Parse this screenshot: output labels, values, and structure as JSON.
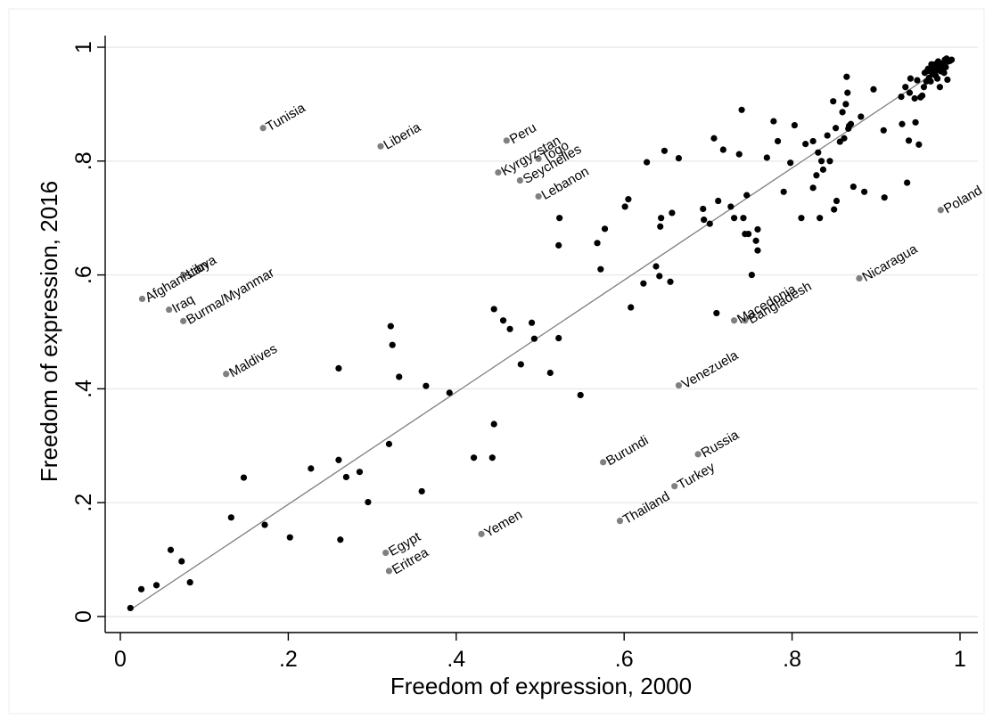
{
  "chart_data": {
    "type": "scatter",
    "title": "",
    "xlabel": "Freedom of expression, 2000",
    "ylabel": "Freedom of expression, 2016",
    "xlim": [
      0,
      1
    ],
    "ylim": [
      0,
      1
    ],
    "xticks": [
      "0",
      ".2",
      ".4",
      ".6",
      ".8",
      "1"
    ],
    "yticks": [
      "0",
      ".2",
      ".4",
      ".6",
      ".8",
      "1"
    ],
    "grid": "horizontal",
    "legend": "none",
    "colors": {
      "unlabeled_point": "#000000",
      "labeled_point": "#808080",
      "grid": "#e3ebef",
      "fit_line": "#808080"
    },
    "fit_line": {
      "x": [
        0.01,
        0.99
      ],
      "y": [
        0.01,
        0.975
      ]
    },
    "labeled_points": [
      {
        "label": "Tunisia",
        "x": 0.17,
        "y": 0.858
      },
      {
        "label": "Liberia",
        "x": 0.31,
        "y": 0.826
      },
      {
        "label": "Peru",
        "x": 0.46,
        "y": 0.836
      },
      {
        "label": "Kyrgyzstan",
        "x": 0.45,
        "y": 0.78
      },
      {
        "label": "Seychelles",
        "x": 0.476,
        "y": 0.766
      },
      {
        "label": "Togo",
        "x": 0.498,
        "y": 0.804
      },
      {
        "label": "Lebanon",
        "x": 0.498,
        "y": 0.738
      },
      {
        "label": "Afghanistan",
        "x": 0.026,
        "y": 0.558
      },
      {
        "label": "Libya",
        "x": 0.075,
        "y": 0.6
      },
      {
        "label": "Iraq",
        "x": 0.058,
        "y": 0.539
      },
      {
        "label": "Burma/Myanmar",
        "x": 0.075,
        "y": 0.519
      },
      {
        "label": "Maldives",
        "x": 0.126,
        "y": 0.426
      },
      {
        "label": "Poland",
        "x": 0.977,
        "y": 0.714
      },
      {
        "label": "Nicaragua",
        "x": 0.88,
        "y": 0.594
      },
      {
        "label": "Macedonia",
        "x": 0.731,
        "y": 0.52
      },
      {
        "label": "Bangladesh",
        "x": 0.744,
        "y": 0.52
      },
      {
        "label": "Venezuela",
        "x": 0.665,
        "y": 0.406
      },
      {
        "label": "Burundi",
        "x": 0.575,
        "y": 0.271
      },
      {
        "label": "Russia",
        "x": 0.688,
        "y": 0.285
      },
      {
        "label": "Turkey",
        "x": 0.66,
        "y": 0.229
      },
      {
        "label": "Thailand",
        "x": 0.595,
        "y": 0.168
      },
      {
        "label": "Yemen",
        "x": 0.43,
        "y": 0.145
      },
      {
        "label": "Egypt",
        "x": 0.316,
        "y": 0.112
      },
      {
        "label": "Eritrea",
        "x": 0.32,
        "y": 0.08
      }
    ],
    "points": [
      [
        0.012,
        0.015
      ],
      [
        0.025,
        0.048
      ],
      [
        0.043,
        0.055
      ],
      [
        0.06,
        0.117
      ],
      [
        0.073,
        0.097
      ],
      [
        0.083,
        0.06
      ],
      [
        0.132,
        0.174
      ],
      [
        0.147,
        0.244
      ],
      [
        0.172,
        0.161
      ],
      [
        0.202,
        0.139
      ],
      [
        0.227,
        0.26
      ],
      [
        0.26,
        0.275
      ],
      [
        0.262,
        0.135
      ],
      [
        0.269,
        0.245
      ],
      [
        0.285,
        0.254
      ],
      [
        0.295,
        0.201
      ],
      [
        0.26,
        0.436
      ],
      [
        0.32,
        0.303
      ],
      [
        0.322,
        0.51
      ],
      [
        0.324,
        0.477
      ],
      [
        0.332,
        0.421
      ],
      [
        0.359,
        0.22
      ],
      [
        0.364,
        0.405
      ],
      [
        0.392,
        0.393
      ],
      [
        0.421,
        0.279
      ],
      [
        0.443,
        0.279
      ],
      [
        0.445,
        0.338
      ],
      [
        0.445,
        0.54
      ],
      [
        0.456,
        0.52
      ],
      [
        0.464,
        0.505
      ],
      [
        0.477,
        0.443
      ],
      [
        0.49,
        0.516
      ],
      [
        0.493,
        0.488
      ],
      [
        0.512,
        0.428
      ],
      [
        0.522,
        0.489
      ],
      [
        0.522,
        0.652
      ],
      [
        0.523,
        0.7
      ],
      [
        0.548,
        0.389
      ],
      [
        0.568,
        0.656
      ],
      [
        0.572,
        0.61
      ],
      [
        0.577,
        0.681
      ],
      [
        0.601,
        0.72
      ],
      [
        0.605,
        0.733
      ],
      [
        0.608,
        0.543
      ],
      [
        0.623,
        0.585
      ],
      [
        0.627,
        0.798
      ],
      [
        0.638,
        0.615
      ],
      [
        0.642,
        0.598
      ],
      [
        0.643,
        0.685
      ],
      [
        0.644,
        0.7
      ],
      [
        0.648,
        0.818
      ],
      [
        0.655,
        0.588
      ],
      [
        0.657,
        0.709
      ],
      [
        0.665,
        0.805
      ],
      [
        0.694,
        0.716
      ],
      [
        0.695,
        0.697
      ],
      [
        0.702,
        0.69
      ],
      [
        0.707,
        0.84
      ],
      [
        0.71,
        0.533
      ],
      [
        0.712,
        0.73
      ],
      [
        0.718,
        0.82
      ],
      [
        0.727,
        0.72
      ],
      [
        0.731,
        0.7
      ],
      [
        0.737,
        0.812
      ],
      [
        0.74,
        0.89
      ],
      [
        0.742,
        0.7
      ],
      [
        0.744,
        0.672
      ],
      [
        0.746,
        0.74
      ],
      [
        0.748,
        0.672
      ],
      [
        0.752,
        0.6
      ],
      [
        0.757,
        0.66
      ],
      [
        0.759,
        0.643
      ],
      [
        0.759,
        0.68
      ],
      [
        0.77,
        0.806
      ],
      [
        0.778,
        0.87
      ],
      [
        0.783,
        0.835
      ],
      [
        0.79,
        0.746
      ],
      [
        0.798,
        0.797
      ],
      [
        0.803,
        0.863
      ],
      [
        0.811,
        0.7
      ],
      [
        0.816,
        0.83
      ],
      [
        0.825,
        0.753
      ],
      [
        0.825,
        0.835
      ],
      [
        0.829,
        0.775
      ],
      [
        0.831,
        0.815
      ],
      [
        0.833,
        0.7
      ],
      [
        0.835,
        0.8
      ],
      [
        0.837,
        0.785
      ],
      [
        0.842,
        0.845
      ],
      [
        0.845,
        0.8
      ],
      [
        0.849,
        0.905
      ],
      [
        0.85,
        0.715
      ],
      [
        0.852,
        0.858
      ],
      [
        0.853,
        0.73
      ],
      [
        0.857,
        0.834
      ],
      [
        0.86,
        0.886
      ],
      [
        0.862,
        0.84
      ],
      [
        0.864,
        0.9
      ],
      [
        0.865,
        0.948
      ],
      [
        0.866,
        0.92
      ],
      [
        0.867,
        0.857
      ],
      [
        0.868,
        0.862
      ],
      [
        0.87,
        0.865
      ],
      [
        0.873,
        0.755
      ],
      [
        0.882,
        0.878
      ],
      [
        0.886,
        0.746
      ],
      [
        0.897,
        0.926
      ],
      [
        0.909,
        0.854
      ],
      [
        0.91,
        0.736
      ],
      [
        0.93,
        0.913
      ],
      [
        0.931,
        0.865
      ],
      [
        0.935,
        0.93
      ],
      [
        0.937,
        0.762
      ],
      [
        0.939,
        0.836
      ],
      [
        0.94,
        0.92
      ],
      [
        0.941,
        0.945
      ],
      [
        0.946,
        0.91
      ],
      [
        0.947,
        0.868
      ],
      [
        0.949,
        0.942
      ],
      [
        0.951,
        0.829
      ],
      [
        0.953,
        0.912
      ],
      [
        0.955,
        0.915
      ],
      [
        0.957,
        0.93
      ],
      [
        0.958,
        0.955
      ],
      [
        0.96,
        0.94
      ],
      [
        0.961,
        0.958
      ],
      [
        0.962,
        0.962
      ],
      [
        0.963,
        0.946
      ],
      [
        0.965,
        0.94
      ],
      [
        0.966,
        0.97
      ],
      [
        0.967,
        0.953
      ],
      [
        0.968,
        0.957
      ],
      [
        0.969,
        0.963
      ],
      [
        0.97,
        0.97
      ],
      [
        0.971,
        0.95
      ],
      [
        0.972,
        0.96
      ],
      [
        0.973,
        0.945
      ],
      [
        0.974,
        0.975
      ],
      [
        0.975,
        0.968
      ],
      [
        0.976,
        0.93
      ],
      [
        0.977,
        0.958
      ],
      [
        0.978,
        0.967
      ],
      [
        0.979,
        0.96
      ],
      [
        0.98,
        0.972
      ],
      [
        0.981,
        0.955
      ],
      [
        0.982,
        0.978
      ],
      [
        0.983,
        0.965
      ],
      [
        0.984,
        0.98
      ],
      [
        0.985,
        0.943
      ],
      [
        0.986,
        0.975
      ],
      [
        0.988,
        0.976
      ],
      [
        0.99,
        0.978
      ]
    ]
  }
}
